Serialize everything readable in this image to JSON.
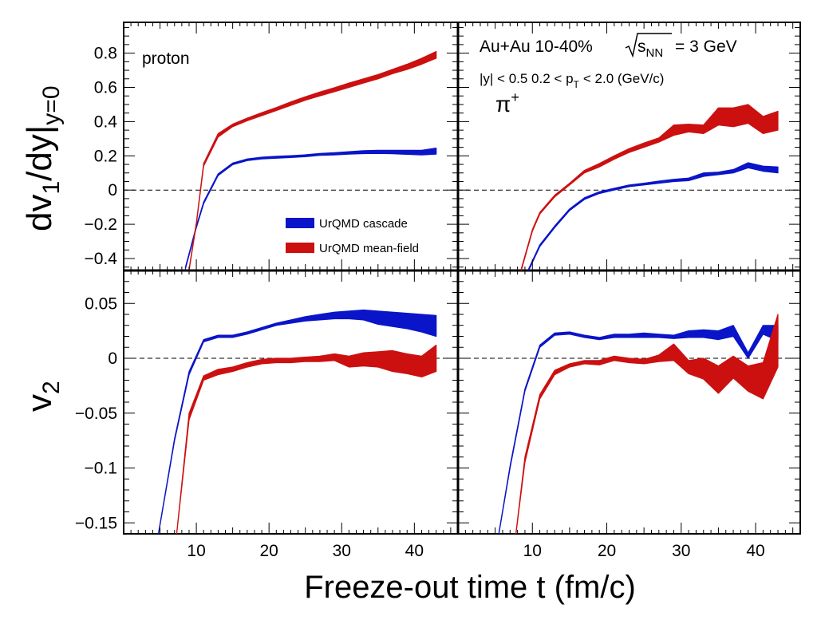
{
  "chart_data": [
    {
      "panel": "top-left",
      "type": "area",
      "title": "",
      "particle": "proton",
      "ylabel": "dv1/dy|y=0",
      "xlim": [
        0,
        46
      ],
      "ylim": [
        -0.47,
        0.98
      ],
      "yticks": [
        "0.8",
        "0.6",
        "0.4",
        "0.2",
        "0",
        "−0.2",
        "−0.4"
      ],
      "series": [
        {
          "name": "UrQMD cascade",
          "color": "#0a14c8",
          "x": [
            8.5,
            9,
            10,
            11,
            13,
            15,
            17,
            19,
            21,
            23,
            25,
            27,
            29,
            31,
            33,
            35,
            37,
            39,
            41,
            43
          ],
          "lo": [
            -0.46,
            -0.38,
            -0.22,
            -0.08,
            0.085,
            0.148,
            0.172,
            0.182,
            0.186,
            0.19,
            0.195,
            0.203,
            0.205,
            0.21,
            0.213,
            0.214,
            0.212,
            0.209,
            0.205,
            0.21
          ],
          "hi": [
            -0.45,
            -0.37,
            -0.21,
            -0.07,
            0.095,
            0.158,
            0.182,
            0.192,
            0.197,
            0.201,
            0.206,
            0.214,
            0.218,
            0.224,
            0.23,
            0.232,
            0.232,
            0.232,
            0.232,
            0.245
          ]
        },
        {
          "name": "UrQMD mean-field",
          "color": "#cc1010",
          "x": [
            9,
            10,
            11,
            13,
            15,
            17,
            19,
            21,
            23,
            25,
            27,
            29,
            31,
            33,
            35,
            37,
            39,
            41,
            43
          ],
          "lo": [
            -0.47,
            -0.2,
            0.14,
            0.31,
            0.37,
            0.405,
            0.435,
            0.465,
            0.495,
            0.525,
            0.55,
            0.575,
            0.6,
            0.625,
            0.65,
            0.68,
            0.705,
            0.735,
            0.77
          ],
          "hi": [
            -0.46,
            -0.19,
            0.155,
            0.33,
            0.385,
            0.42,
            0.452,
            0.482,
            0.515,
            0.545,
            0.573,
            0.598,
            0.625,
            0.65,
            0.675,
            0.705,
            0.735,
            0.77,
            0.81
          ]
        }
      ]
    },
    {
      "panel": "top-right",
      "type": "area",
      "title": "Au+Au 10-40% √s_NN = 3 GeV",
      "particle": "π+",
      "cuts": "|y| < 0.5  0.2 < p_T < 2.0 (GeV/c)",
      "xlim": [
        0,
        46
      ],
      "ylim": [
        -0.47,
        0.98
      ],
      "series": [
        {
          "name": "UrQMD cascade",
          "color": "#0a14c8",
          "x": [
            9.5,
            11,
            13,
            15,
            17,
            19,
            21,
            23,
            25,
            27,
            29,
            31,
            33,
            35,
            37,
            39,
            41,
            43
          ],
          "lo": [
            -0.47,
            -0.33,
            -0.22,
            -0.12,
            -0.055,
            -0.02,
            0.0,
            0.02,
            0.03,
            0.04,
            0.05,
            0.055,
            0.08,
            0.09,
            0.1,
            0.13,
            0.11,
            0.1
          ],
          "hi": [
            -0.46,
            -0.32,
            -0.21,
            -0.11,
            -0.045,
            -0.01,
            0.01,
            0.03,
            0.04,
            0.052,
            0.063,
            0.07,
            0.1,
            0.105,
            0.12,
            0.16,
            0.14,
            0.135
          ]
        },
        {
          "name": "UrQMD mean-field",
          "color": "#cc1010",
          "x": [
            8.5,
            10,
            11,
            13,
            15,
            17,
            19,
            21,
            23,
            25,
            27,
            29,
            31,
            33,
            35,
            37,
            39,
            41,
            43
          ],
          "lo": [
            -0.47,
            -0.24,
            -0.14,
            -0.04,
            0.03,
            0.1,
            0.135,
            0.18,
            0.22,
            0.25,
            0.28,
            0.32,
            0.34,
            0.33,
            0.38,
            0.37,
            0.39,
            0.33,
            0.35
          ],
          "hi": [
            -0.46,
            -0.23,
            -0.13,
            -0.03,
            0.04,
            0.115,
            0.155,
            0.2,
            0.242,
            0.275,
            0.305,
            0.38,
            0.385,
            0.38,
            0.48,
            0.48,
            0.5,
            0.43,
            0.46
          ]
        }
      ]
    },
    {
      "panel": "bottom-left",
      "type": "area",
      "ylabel": "v2",
      "xlim": [
        0,
        46
      ],
      "ylim": [
        -0.16,
        0.08
      ],
      "yticks": [
        "0.05",
        "0",
        "−0.05",
        "−0.1",
        "−0.15"
      ],
      "series": [
        {
          "name": "UrQMD cascade",
          "color": "#0a14c8",
          "x": [
            4.8,
            7,
            9,
            11,
            13,
            15,
            17,
            19,
            21,
            23,
            25,
            27,
            29,
            31,
            33,
            35,
            37,
            39,
            41,
            43
          ],
          "lo": [
            -0.16,
            -0.075,
            -0.015,
            0.015,
            0.019,
            0.019,
            0.022,
            0.026,
            0.03,
            0.032,
            0.034,
            0.035,
            0.036,
            0.036,
            0.035,
            0.031,
            0.029,
            0.027,
            0.024,
            0.02
          ],
          "hi": [
            -0.159,
            -0.073,
            -0.012,
            0.017,
            0.021,
            0.021,
            0.024,
            0.028,
            0.032,
            0.035,
            0.038,
            0.04,
            0.042,
            0.043,
            0.044,
            0.043,
            0.042,
            0.041,
            0.04,
            0.039
          ]
        },
        {
          "name": "UrQMD mean-field",
          "color": "#cc1010",
          "x": [
            7.3,
            9,
            11,
            13,
            15,
            17,
            19,
            21,
            23,
            25,
            27,
            29,
            31,
            33,
            35,
            37,
            39,
            41,
            43
          ],
          "lo": [
            -0.16,
            -0.056,
            -0.02,
            -0.015,
            -0.012,
            -0.008,
            -0.005,
            -0.004,
            -0.004,
            -0.003,
            -0.003,
            -0.002,
            -0.008,
            -0.007,
            -0.008,
            -0.012,
            -0.014,
            -0.017,
            -0.012
          ],
          "hi": [
            -0.159,
            -0.05,
            -0.016,
            -0.01,
            -0.008,
            -0.004,
            -0.001,
            0.0,
            0.0,
            0.001,
            0.002,
            0.004,
            0.002,
            0.005,
            0.006,
            0.007,
            0.004,
            0.002,
            0.012
          ]
        }
      ]
    },
    {
      "panel": "bottom-right",
      "type": "area",
      "xlim": [
        0,
        46
      ],
      "ylim": [
        -0.16,
        0.08
      ],
      "series": [
        {
          "name": "UrQMD cascade",
          "color": "#0a14c8",
          "x": [
            5.5,
            7,
            9,
            11,
            13,
            15,
            17,
            19,
            21,
            23,
            25,
            27,
            29,
            31,
            33,
            35,
            37,
            39,
            41,
            43
          ],
          "lo": [
            -0.16,
            -0.1,
            -0.03,
            0.01,
            0.021,
            0.022,
            0.019,
            0.017,
            0.019,
            0.019,
            0.019,
            0.019,
            0.018,
            0.019,
            0.019,
            0.017,
            0.02,
            0.0,
            0.022,
            0.016
          ],
          "hi": [
            -0.159,
            -0.098,
            -0.028,
            0.012,
            0.023,
            0.024,
            0.021,
            0.019,
            0.022,
            0.022,
            0.023,
            0.022,
            0.021,
            0.025,
            0.026,
            0.025,
            0.03,
            0.005,
            0.03,
            0.03
          ]
        },
        {
          "name": "UrQMD mean-field",
          "color": "#cc1010",
          "x": [
            7.8,
            9,
            11,
            13,
            15,
            17,
            19,
            21,
            23,
            25,
            27,
            29,
            31,
            33,
            35,
            37,
            39,
            41,
            43
          ],
          "lo": [
            -0.16,
            -0.095,
            -0.037,
            -0.015,
            -0.008,
            -0.005,
            -0.006,
            -0.002,
            -0.004,
            -0.005,
            -0.003,
            -0.002,
            -0.014,
            -0.019,
            -0.032,
            -0.018,
            -0.03,
            -0.037,
            -0.008
          ],
          "hi": [
            -0.159,
            -0.09,
            -0.033,
            -0.011,
            -0.005,
            -0.002,
            -0.002,
            0.002,
            0.0,
            -0.001,
            0.003,
            0.013,
            -0.002,
            0.0,
            -0.007,
            0.002,
            -0.007,
            -0.004,
            0.04
          ]
        }
      ]
    }
  ],
  "xaxis": {
    "label": "Freeze-out time t (fm/c)",
    "ticks": [
      "10",
      "20",
      "30",
      "40"
    ]
  },
  "labels": {
    "proton": "proton",
    "system": "Au+Au 10-40%",
    "energy": "= 3 GeV",
    "sqrt_s": "s",
    "sqrt_s_sub": "NN",
    "cut_y": "|y| < 0.5  0.2 < p",
    "cut_sub": "T",
    "cut_tail": "< 2.0 (GeV/c)",
    "pion": "π",
    "pion_sup": "+",
    "ylabel_top": "dv",
    "ylabel_top_sub1": "1",
    "ylabel_top_mid": "/dy|",
    "ylabel_top_sub2": "y=0",
    "ylabel_bot": "v",
    "ylabel_bot_sub": "2"
  },
  "legend": {
    "cascade": "UrQMD cascade",
    "meanfield": "UrQMD mean-field",
    "cascade_color": "#0a14c8",
    "meanfield_color": "#cc1010"
  }
}
